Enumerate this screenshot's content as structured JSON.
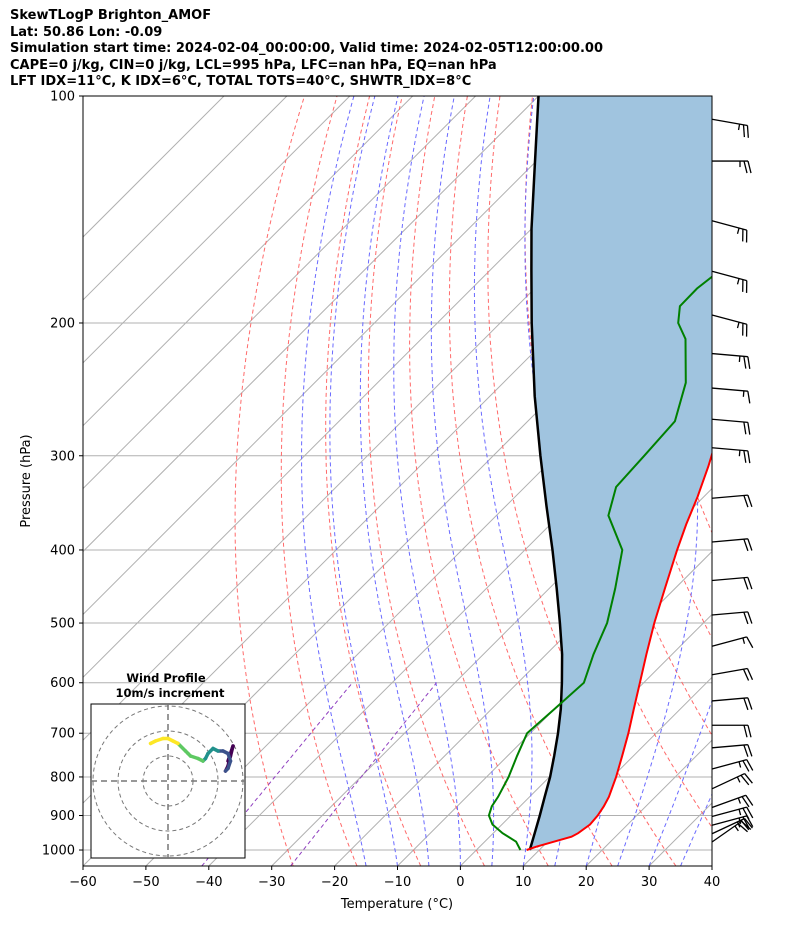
{
  "header": {
    "line1": "SkewTLogP Brighton_AMOF",
    "line2": "Lat: 50.86   Lon: -0.09",
    "line3": "Simulation start time: 2024-02-04_00:00:00, Valid time: 2024-02-05T12:00:00.00",
    "line4": "CAPE=0 j/kg, CIN=0 j/kg, LCL=995 hPa, LFC=nan hPa, EQ=nan hPa",
    "line5": "LFT IDX=11°C, K IDX=6°C, TOTAL TOTS=40°C, SHWTR_IDX=8°C"
  },
  "chart_data": {
    "type": "line",
    "xlabel": "Temperature (°C)",
    "ylabel": "Pressure (hPa)",
    "xlim": [
      -60,
      40
    ],
    "ylim": [
      1050,
      100
    ],
    "y_scale": "log",
    "x_ticks": [
      -60,
      -50,
      -40,
      -30,
      -20,
      -10,
      0,
      10,
      20,
      30,
      40
    ],
    "x_tick_labels": [
      "−60",
      "−50",
      "−40",
      "−30",
      "−20",
      "−10",
      "0",
      "10",
      "20",
      "30",
      "40"
    ],
    "y_ticks": [
      1000,
      900,
      800,
      700,
      600,
      500,
      400,
      300,
      200,
      100
    ],
    "y_tick_labels": [
      "1000",
      "900",
      "800",
      "700",
      "600",
      "500",
      "400",
      "300",
      "200",
      "100"
    ],
    "grid": true,
    "colors": {
      "temperature": "#ff0000",
      "dewpoint": "#008000",
      "parcel": "#000000",
      "shade": "#a0c4df",
      "dry_adiabats": "#ff6a6a",
      "moist_adiabats": "#6a6aff",
      "mixing_ratio": "#9040c0",
      "isotherms": "#b0b0b0"
    },
    "series": [
      {
        "name": "",
        "p": [
          1000,
          990,
          975,
          960,
          950,
          925,
          900,
          875,
          850,
          800,
          750,
          700,
          650,
          600,
          550,
          500,
          450,
          400,
          370,
          340,
          310,
          280,
          250,
          220,
          200,
          190,
          180,
          170,
          160,
          150,
          140,
          130,
          120,
          110,
          100
        ],
        "temp": [
          8.0,
          9.0,
          11.0,
          13.0,
          13.5,
          14.0,
          13.8,
          13.3,
          12.6,
          10.6,
          8.2,
          5.6,
          2.6,
          -0.6,
          -4.1,
          -7.8,
          -11.6,
          -15.8,
          -18.4,
          -21.0,
          -24.1,
          -27.8,
          -32.0,
          -37.2,
          -41.0,
          -42.7,
          -43.8,
          -43.4,
          -41.5,
          -38.0,
          -33.0,
          -28.0,
          -26.0,
          -25.5,
          -25.0
        ]
      },
      {
        "name": "",
        "p": [
          1000,
          975,
          950,
          925,
          900,
          875,
          850,
          800,
          750,
          700,
          650,
          600,
          550,
          500,
          450,
          400,
          360,
          330,
          300,
          270,
          240,
          210,
          200,
          190,
          180,
          170,
          160,
          150,
          140,
          130,
          120,
          110,
          100
        ],
        "dewpoint": [
          7.0,
          5.0,
          1.5,
          -1.5,
          -3.5,
          -4.5,
          -5.0,
          -6.5,
          -8.5,
          -10.5,
          -10.0,
          -9.5,
          -12.5,
          -15.3,
          -19.5,
          -24.5,
          -32.2,
          -35.5,
          -36.0,
          -36.6,
          -41.0,
          -48.0,
          -51.7,
          -54.1,
          -54.2,
          -53.4,
          -51.6,
          -48.0,
          -44.0,
          -41.0,
          -40.5,
          -36.5,
          -32.0
        ]
      },
      {
        "name": "",
        "p": [
          1000,
          950,
          900,
          850,
          800,
          750,
          700,
          650,
          600,
          550,
          500,
          450,
          400,
          350,
          300,
          250,
          200,
          170,
          150,
          125,
          100
        ],
        "parcel_temp": [
          8.5,
          6.6,
          4.6,
          2.4,
          0.1,
          -2.6,
          -5.6,
          -9.0,
          -13.0,
          -17.5,
          -22.8,
          -28.8,
          -35.6,
          -43.5,
          -52.5,
          -62.9,
          -75.0,
          -83.5,
          -90.0,
          -99.0,
          -110.0
        ]
      }
    ],
    "wind_barbs": {
      "p": [
        1000,
        975,
        950,
        925,
        900,
        850,
        800,
        750,
        700,
        650,
        600,
        550,
        500,
        450,
        400,
        350,
        300,
        275,
        250,
        225,
        200,
        175,
        150,
        125,
        110
      ],
      "speed_kt": [
        25,
        25,
        25,
        25,
        25,
        25,
        25,
        20,
        20,
        20,
        20,
        15,
        20,
        20,
        20,
        20,
        25,
        20,
        15,
        25,
        25,
        25,
        25,
        25,
        25
      ],
      "direction_deg": [
        235,
        245,
        255,
        255,
        250,
        245,
        255,
        265,
        270,
        265,
        260,
        255,
        265,
        265,
        265,
        265,
        275,
        275,
        275,
        275,
        285,
        285,
        285,
        270,
        280
      ]
    },
    "hodograph": {
      "title": "Wind Profile",
      "subtitle": "10m/s increment",
      "rings_ms": [
        10,
        20,
        30
      ],
      "u_ms": [
        24,
        25,
        26,
        25,
        24,
        23,
        24,
        25,
        24,
        22,
        20,
        18,
        16,
        15,
        14,
        12,
        9,
        8,
        7,
        4,
        2,
        0,
        -2,
        -5,
        -7
      ],
      "v_ms": [
        8,
        11,
        14,
        10,
        6,
        4,
        5,
        8,
        11,
        12,
        12,
        13,
        11,
        9,
        8,
        9,
        10,
        11,
        12,
        15,
        16,
        17,
        17,
        16,
        15
      ]
    }
  }
}
